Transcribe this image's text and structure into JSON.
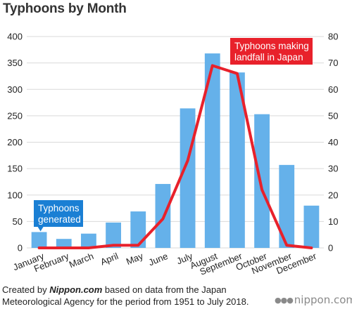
{
  "title": "Typhoons by Month",
  "footer": {
    "prefix": "Created by ",
    "brand": "Nippon.com",
    "suffix": " based on data from the Japan Meteorological Agency for the period from 1951 to July 2018."
  },
  "logo": "nippon.com",
  "colors": {
    "bar": "#65b1ea",
    "line": "#e8212b",
    "badge_blue": "#1a7fd4",
    "badge_red": "#e8212b"
  },
  "chart_data": {
    "type": "bar+line",
    "categories": [
      "January",
      "February",
      "March",
      "April",
      "May",
      "June",
      "July",
      "August",
      "September",
      "October",
      "November",
      "December"
    ],
    "series": [
      {
        "name": "Typhoons generated",
        "type": "bar",
        "axis": "left",
        "values": [
          30,
          17,
          27,
          48,
          69,
          121,
          264,
          368,
          332,
          253,
          157,
          80
        ]
      },
      {
        "name": "Typhoons making landfall in Japan",
        "type": "line",
        "axis": "right",
        "values": [
          0,
          0,
          0,
          1,
          1,
          11,
          33,
          69,
          66,
          22,
          1,
          0
        ]
      }
    ],
    "y_left": {
      "min": 0,
      "max": 400,
      "ticks": [
        0,
        50,
        100,
        150,
        200,
        250,
        300,
        350,
        400
      ]
    },
    "y_right": {
      "min": 0,
      "max": 80,
      "ticks": [
        0,
        10,
        20,
        30,
        40,
        50,
        60,
        70,
        80
      ]
    },
    "annotations": [
      {
        "text_lines": [
          "Typhoons",
          "generated"
        ],
        "series": "Typhoons generated",
        "category": "January"
      },
      {
        "text_lines": [
          "Typhoons making",
          "landfall in Japan"
        ],
        "series": "Typhoons making landfall in Japan",
        "category": "August"
      }
    ],
    "grid": "horizontal"
  }
}
